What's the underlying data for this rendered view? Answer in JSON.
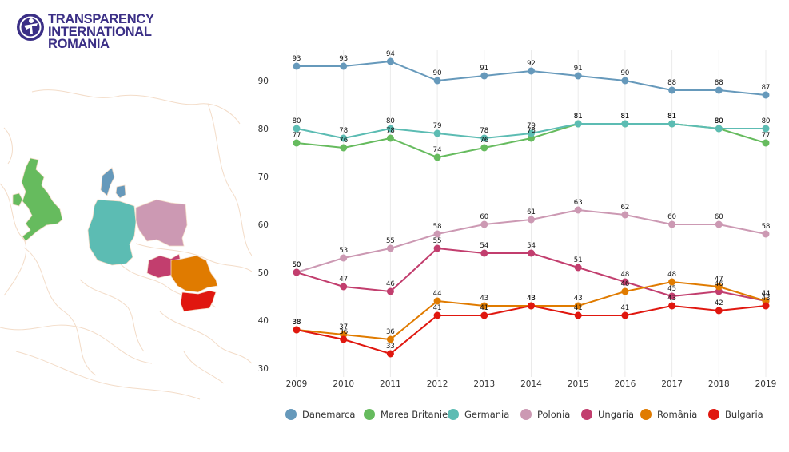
{
  "logo": {
    "line1": "TRANSPARENCY",
    "line2": "INTERNATIONAL",
    "line3": "ROMANIA",
    "color": "#3b2f86"
  },
  "map": {
    "country_colors": {
      "uk": "#66bb5e",
      "denmark": "#6699bb",
      "germany": "#5cbcb3",
      "poland": "#cc99b3",
      "hungary": "#c23e6e",
      "romania": "#e07b00",
      "bulgaria": "#e0170f"
    },
    "border_color": "#f3dcc8"
  },
  "chart_data": {
    "type": "line",
    "x": [
      2009,
      2010,
      2011,
      2012,
      2013,
      2014,
      2015,
      2016,
      2017,
      2018,
      2019
    ],
    "xlabel": "",
    "ylabel": "",
    "ylim": [
      28,
      95
    ],
    "yticks": [
      30,
      40,
      50,
      60,
      70,
      80,
      90
    ],
    "grid": "vertical",
    "legend_position": "bottom",
    "series": [
      {
        "name": "Danemarca",
        "color": "#6699bb",
        "values": [
          93,
          93,
          94,
          90,
          91,
          92,
          91,
          90,
          88,
          88,
          87
        ]
      },
      {
        "name": "Marea Britanie",
        "color": "#66bb5e",
        "values": [
          77,
          76,
          78,
          74,
          76,
          78,
          81,
          81,
          81,
          80,
          77
        ]
      },
      {
        "name": "Germania",
        "color": "#5cbcb3",
        "values": [
          80,
          78,
          80,
          79,
          78,
          79,
          81,
          81,
          81,
          80,
          80
        ]
      },
      {
        "name": "Polonia",
        "color": "#cc99b3",
        "values": [
          50,
          53,
          55,
          58,
          60,
          61,
          63,
          62,
          60,
          60,
          58
        ]
      },
      {
        "name": "Ungaria",
        "color": "#c23e6e",
        "values": [
          50,
          47,
          46,
          55,
          54,
          54,
          51,
          48,
          45,
          46,
          44
        ]
      },
      {
        "name": "România",
        "color": "#e07b00",
        "values": [
          38,
          37,
          36,
          44,
          43,
          43,
          43,
          46,
          48,
          47,
          44
        ]
      },
      {
        "name": "Bulgaria",
        "color": "#e0170f",
        "values": [
          38,
          36,
          33,
          41,
          41,
          43,
          41,
          41,
          43,
          42,
          43
        ]
      }
    ]
  }
}
